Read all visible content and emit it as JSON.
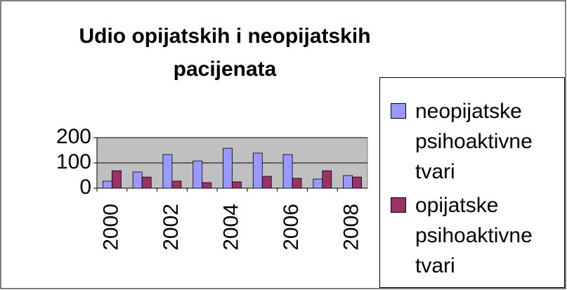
{
  "chart_data": {
    "type": "bar",
    "title": "Udio opijatskih i neopijatskih pacijenata",
    "categories": [
      "2000",
      null,
      "2002",
      null,
      "2004",
      null,
      "2006",
      null,
      "2008"
    ],
    "series": [
      {
        "name": "neopijatske psihoaktivne tvari",
        "color": "#9999ff",
        "values": [
          28,
          64,
          133,
          108,
          158,
          139,
          133,
          36,
          50
        ]
      },
      {
        "name": "opijatske psihoaktivne tvari",
        "color": "#993366",
        "values": [
          69,
          44,
          28,
          22,
          25,
          47,
          39,
          69,
          44
        ]
      }
    ],
    "ylim": [
      0,
      200
    ],
    "yticks": [
      0,
      100,
      200
    ],
    "grid": true,
    "plot_background": "#c0c0c0",
    "legend": "right"
  }
}
